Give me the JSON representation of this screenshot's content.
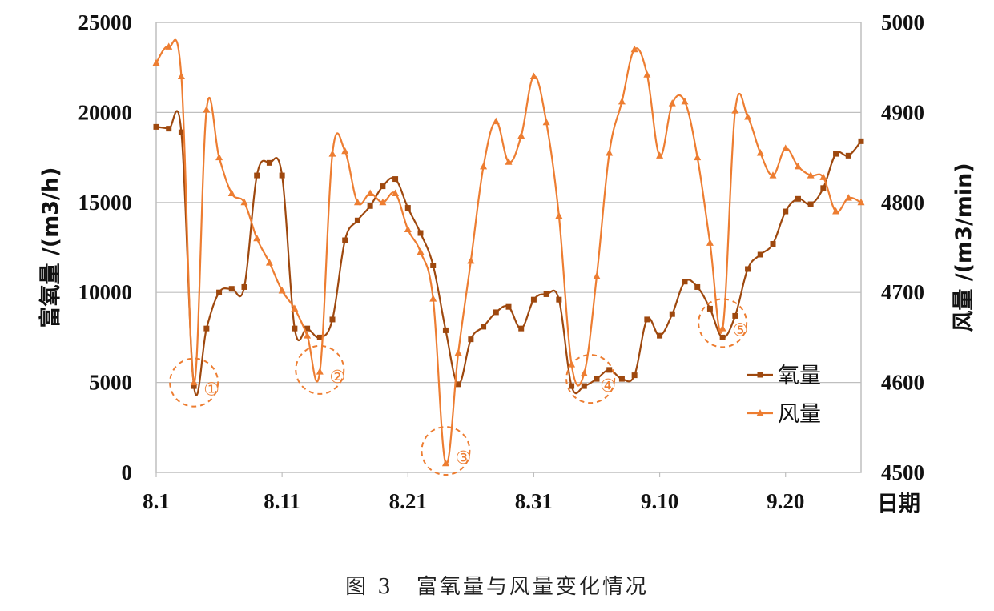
{
  "caption": "图 3　富氧量与风量变化情况",
  "chart_data": {
    "type": "line",
    "xlabel": "日期",
    "x_tick_labels": [
      "8.1",
      "8.11",
      "8.21",
      "8.31",
      "9.10",
      "9.20"
    ],
    "x_tick_days": [
      1,
      11,
      21,
      31,
      41,
      51
    ],
    "xlim": [
      1,
      57
    ],
    "ylabel_left": "富氧量 /(m3/h)",
    "ylabel_right": "风量 /(m3/min)",
    "ylim_left": [
      0,
      25000
    ],
    "ylim_right": [
      4500,
      5000
    ],
    "y_ticks_left": [
      0,
      5000,
      10000,
      15000,
      20000,
      25000
    ],
    "y_ticks_right": [
      4500,
      4600,
      4700,
      4800,
      4900,
      5000
    ],
    "grid": true,
    "legend_position": "bottom-right",
    "series": [
      {
        "name": "氧量",
        "axis": "left",
        "color": "#9E480E",
        "marker": "square",
        "x": [
          1,
          2,
          3,
          4,
          5,
          6,
          7,
          8,
          9,
          10,
          11,
          12,
          13,
          14,
          15,
          16,
          17,
          18,
          19,
          20,
          21,
          22,
          23,
          24,
          25,
          26,
          27,
          28,
          29,
          30,
          31,
          32,
          33,
          34,
          35,
          36,
          37,
          38,
          39,
          40,
          41,
          42,
          43,
          44,
          45,
          46,
          47,
          48,
          49,
          50,
          51,
          52,
          53,
          54,
          55,
          56,
          57
        ],
        "values": [
          19200,
          19100,
          18900,
          4800,
          8000,
          10000,
          10200,
          10300,
          16500,
          17200,
          16500,
          8000,
          8000,
          7500,
          8500,
          12900,
          14000,
          14800,
          15900,
          16300,
          14700,
          13300,
          11500,
          7900,
          4900,
          7400,
          8100,
          8900,
          9200,
          8000,
          9600,
          9900,
          9600,
          4800,
          4800,
          5200,
          5700,
          5200,
          5400,
          8500,
          7600,
          8800,
          10600,
          10300,
          9100,
          7500,
          8700,
          11300,
          12100,
          12700,
          14500,
          15200,
          14900,
          15800,
          17700,
          17600,
          18400
        ]
      },
      {
        "name": "风量",
        "axis": "right",
        "color": "#ED7D31",
        "marker": "triangle",
        "x": [
          1,
          2,
          3,
          4,
          5,
          6,
          7,
          8,
          9,
          10,
          11,
          12,
          13,
          14,
          15,
          16,
          17,
          18,
          19,
          20,
          21,
          22,
          23,
          24,
          25,
          26,
          27,
          28,
          29,
          30,
          31,
          32,
          33,
          34,
          35,
          36,
          37,
          38,
          39,
          40,
          41,
          42,
          43,
          44,
          45,
          46,
          47,
          48,
          49,
          50,
          51,
          52,
          53,
          54,
          55,
          56,
          57
        ],
        "values": [
          4955,
          4973,
          4940,
          4600,
          4903,
          4850,
          4810,
          4800,
          4760,
          4733,
          4702,
          4682,
          4652,
          4612,
          4854,
          4857,
          4800,
          4810,
          4800,
          4810,
          4770,
          4745,
          4693,
          4510,
          4633,
          4735,
          4840,
          4890,
          4845,
          4874,
          4940,
          4889,
          4785,
          4620,
          4610,
          4718,
          4855,
          4912,
          4970,
          4942,
          4852,
          4910,
          4912,
          4850,
          4755,
          4660,
          4902,
          4895,
          4855,
          4830,
          4860,
          4840,
          4830,
          4828,
          4790,
          4805,
          4800
        ]
      }
    ],
    "annotations": [
      {
        "label": "①",
        "x": 4,
        "axis": "left",
        "y": 5000
      },
      {
        "label": "②",
        "x": 14,
        "axis": "left",
        "y": 5700
      },
      {
        "label": "③",
        "x": 24,
        "axis": "left",
        "y": 1200
      },
      {
        "label": "④",
        "x": 35.5,
        "axis": "left",
        "y": 5200
      },
      {
        "label": "⑤",
        "x": 46,
        "axis": "left",
        "y": 8300
      }
    ]
  }
}
